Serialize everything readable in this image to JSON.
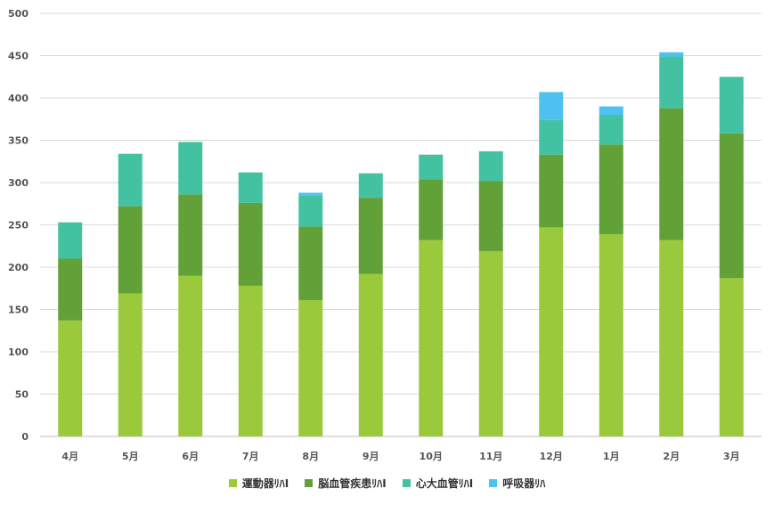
{
  "chart_data": {
    "type": "bar",
    "stacked": true,
    "title": "",
    "xlabel": "",
    "ylabel": "",
    "ylim": [
      0,
      500
    ],
    "yticks": [
      0,
      50,
      100,
      150,
      200,
      250,
      300,
      350,
      400,
      450,
      500
    ],
    "grid": true,
    "legend_position": "bottom",
    "categories": [
      "4月",
      "5月",
      "6月",
      "7月",
      "8月",
      "9月",
      "10月",
      "11月",
      "12月",
      "1月",
      "2月",
      "3月"
    ],
    "series": [
      {
        "name": "運動器ﾘﾊⅠ",
        "color": "#9ACA3C",
        "values": [
          137,
          169,
          190,
          178,
          161,
          192,
          232,
          219,
          247,
          239,
          232,
          187
        ]
      },
      {
        "name": "脳血管疾患ﾘﾊⅠ",
        "color": "#62A038",
        "values": [
          73,
          103,
          96,
          98,
          87,
          90,
          72,
          83,
          86,
          106,
          156,
          171
        ]
      },
      {
        "name": "心大血管ﾘﾊⅠ",
        "color": "#43C2A1",
        "values": [
          43,
          62,
          62,
          36,
          37,
          29,
          29,
          35,
          41,
          35,
          61,
          67
        ]
      },
      {
        "name": "呼吸器ﾘﾊ",
        "color": "#4FC1F0",
        "values": [
          0,
          0,
          0,
          0,
          3,
          0,
          0,
          0,
          33,
          10,
          5,
          0
        ]
      }
    ]
  }
}
